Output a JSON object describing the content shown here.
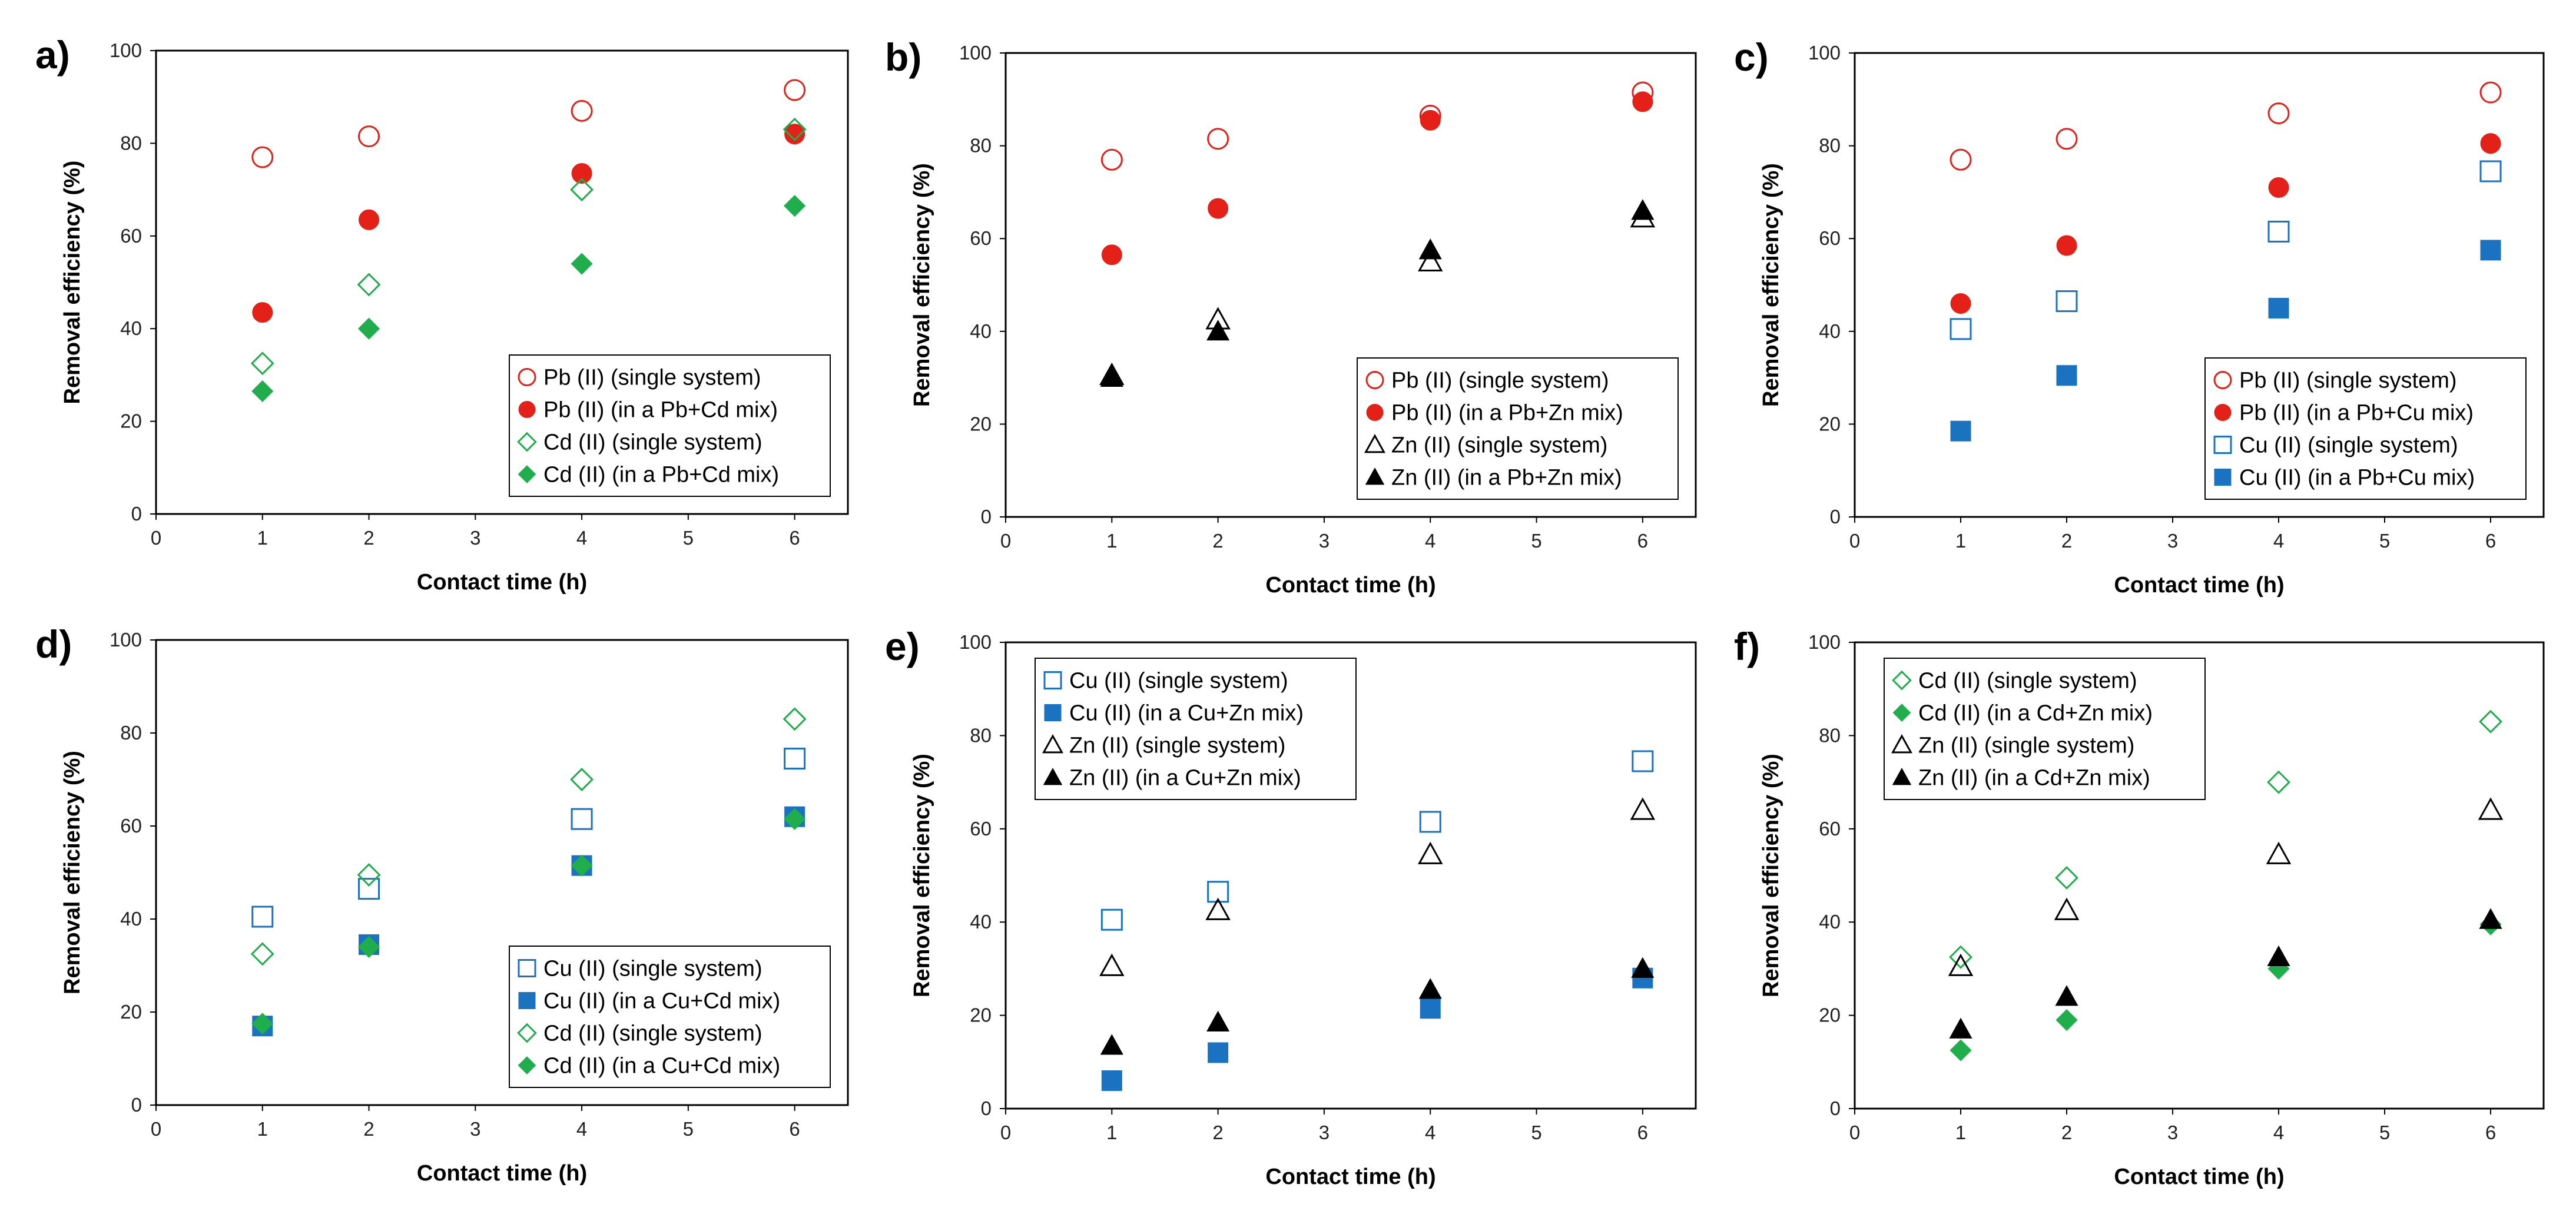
{
  "figure": {
    "colors": {
      "pb": "#e32119",
      "cd": "#20ad4b",
      "cu": "#1a72c1",
      "zn": "#000000"
    }
  },
  "chart_data": [
    {
      "type": "scatter",
      "panel_label": "a)",
      "xlabel": "Contact time (h)",
      "ylabel": "Removal efficiency (%)",
      "xlim": [
        0,
        6.5
      ],
      "ylim": [
        0,
        100
      ],
      "xticks": [
        0,
        1,
        2,
        3,
        4,
        5,
        6
      ],
      "yticks": [
        0,
        20,
        40,
        60,
        80,
        100
      ],
      "legend_position": "bottom-right",
      "series": [
        {
          "name": "Pb (II) (single system)",
          "marker": "circle",
          "filled": false,
          "color": "#e32119",
          "x": [
            1,
            2,
            4,
            6
          ],
          "y": [
            77,
            81.5,
            87,
            91.5
          ]
        },
        {
          "name": "Pb (II) (in a Pb+Cd mix)",
          "marker": "circle",
          "filled": true,
          "color": "#e32119",
          "x": [
            1,
            2,
            4,
            6
          ],
          "y": [
            43.5,
            63.5,
            73.5,
            82
          ]
        },
        {
          "name": "Cd (II) (single system)",
          "marker": "diamond",
          "filled": false,
          "color": "#20ad4b",
          "x": [
            1,
            2,
            4,
            6
          ],
          "y": [
            32.5,
            49.5,
            70,
            83
          ]
        },
        {
          "name": "Cd (II) (in a Pb+Cd mix)",
          "marker": "diamond",
          "filled": true,
          "color": "#20ad4b",
          "x": [
            1,
            2,
            4,
            6
          ],
          "y": [
            26.5,
            40,
            54,
            66.5
          ]
        }
      ]
    },
    {
      "type": "scatter",
      "panel_label": "b)",
      "xlabel": "Contact time (h)",
      "ylabel": "Removal efficiency (%)",
      "xlim": [
        0,
        6.5
      ],
      "ylim": [
        0,
        100
      ],
      "xticks": [
        0,
        1,
        2,
        3,
        4,
        5,
        6
      ],
      "yticks": [
        0,
        20,
        40,
        60,
        80,
        100
      ],
      "legend_position": "bottom-right",
      "series": [
        {
          "name": "Pb (II) (single system)",
          "marker": "circle",
          "filled": false,
          "color": "#e32119",
          "x": [
            1,
            2,
            4,
            6
          ],
          "y": [
            77,
            81.5,
            86.5,
            91.5
          ]
        },
        {
          "name": "Pb (II) (in a Pb+Zn mix)",
          "marker": "circle",
          "filled": true,
          "color": "#e32119",
          "x": [
            1,
            2,
            4,
            6
          ],
          "y": [
            56.5,
            66.5,
            85.5,
            89.5
          ]
        },
        {
          "name": "Zn (II) (single system)",
          "marker": "triangle",
          "filled": false,
          "color": "#000000",
          "x": [
            1,
            2,
            4,
            6
          ],
          "y": [
            30.5,
            42.5,
            55,
            64.5
          ]
        },
        {
          "name": "Zn (II) (in a Pb+Zn mix)",
          "marker": "triangle",
          "filled": true,
          "color": "#000000",
          "x": [
            1,
            2,
            4,
            6
          ],
          "y": [
            30,
            40,
            57.5,
            66
          ]
        }
      ]
    },
    {
      "type": "scatter",
      "panel_label": "c)",
      "xlabel": "Contact time (h)",
      "ylabel": "Removal efficiency (%)",
      "xlim": [
        0,
        6.5
      ],
      "ylim": [
        0,
        100
      ],
      "xticks": [
        0,
        1,
        2,
        3,
        4,
        5,
        6
      ],
      "yticks": [
        0,
        20,
        40,
        60,
        80,
        100
      ],
      "legend_position": "bottom-right",
      "series": [
        {
          "name": "Pb (II) (single system)",
          "marker": "circle",
          "filled": false,
          "color": "#e32119",
          "x": [
            1,
            2,
            4,
            6
          ],
          "y": [
            77,
            81.5,
            87,
            91.5
          ]
        },
        {
          "name": "Pb (II) (in a Pb+Cu mix)",
          "marker": "circle",
          "filled": true,
          "color": "#e32119",
          "x": [
            1,
            2,
            4,
            6
          ],
          "y": [
            46,
            58.5,
            71,
            80.5
          ]
        },
        {
          "name": "Cu (II) (single system)",
          "marker": "square",
          "filled": false,
          "color": "#1a72c1",
          "x": [
            1,
            2,
            4,
            6
          ],
          "y": [
            40.5,
            46.5,
            61.5,
            74.5
          ]
        },
        {
          "name": "Cu (II) (in a Pb+Cu mix)",
          "marker": "square",
          "filled": true,
          "color": "#1a72c1",
          "x": [
            1,
            2,
            4,
            6
          ],
          "y": [
            18.5,
            30.5,
            45,
            57.5
          ]
        }
      ]
    },
    {
      "type": "scatter",
      "panel_label": "d)",
      "xlabel": "Contact time (h)",
      "ylabel": "Removal efficiency (%)",
      "xlim": [
        0,
        6.5
      ],
      "ylim": [
        0,
        100
      ],
      "xticks": [
        0,
        1,
        2,
        3,
        4,
        5,
        6
      ],
      "yticks": [
        0,
        20,
        40,
        60,
        80,
        100
      ],
      "legend_position": "bottom-right",
      "series": [
        {
          "name": "Cu (II) (single system)",
          "marker": "square",
          "filled": false,
          "color": "#1a72c1",
          "x": [
            1,
            2,
            4,
            6
          ],
          "y": [
            40.5,
            46.5,
            61.5,
            74.5
          ]
        },
        {
          "name": "Cu (II) (in a Cu+Cd mix)",
          "marker": "square",
          "filled": true,
          "color": "#1a72c1",
          "x": [
            1,
            2,
            4,
            6
          ],
          "y": [
            17,
            34.5,
            51.5,
            62
          ]
        },
        {
          "name": "Cd (II) (single system)",
          "marker": "diamond",
          "filled": false,
          "color": "#20ad4b",
          "x": [
            1,
            2,
            4,
            6
          ],
          "y": [
            32.5,
            49.5,
            70,
            83
          ]
        },
        {
          "name": "Cd (II) (in a Cu+Cd mix)",
          "marker": "diamond",
          "filled": true,
          "color": "#20ad4b",
          "x": [
            1,
            2,
            4,
            6
          ],
          "y": [
            17.5,
            34,
            51.5,
            61.5
          ]
        }
      ]
    },
    {
      "type": "scatter",
      "panel_label": "e)",
      "xlabel": "Contact time (h)",
      "ylabel": "Removal efficiency (%)",
      "xlim": [
        0,
        6.5
      ],
      "ylim": [
        0,
        100
      ],
      "xticks": [
        0,
        1,
        2,
        3,
        4,
        5,
        6
      ],
      "yticks": [
        0,
        20,
        40,
        60,
        80,
        100
      ],
      "legend_position": "top-left",
      "series": [
        {
          "name": "Cu (II) (single system)",
          "marker": "square",
          "filled": false,
          "color": "#1a72c1",
          "x": [
            1,
            2,
            4,
            6
          ],
          "y": [
            40.5,
            46.5,
            61.5,
            74.5
          ]
        },
        {
          "name": "Cu (II) (in a Cu+Zn mix)",
          "marker": "square",
          "filled": true,
          "color": "#1a72c1",
          "x": [
            1,
            2,
            4,
            6
          ],
          "y": [
            6,
            12,
            21.5,
            28
          ]
        },
        {
          "name": "Zn (II) (single system)",
          "marker": "triangle",
          "filled": false,
          "color": "#000000",
          "x": [
            1,
            2,
            4,
            6
          ],
          "y": [
            30.5,
            42.5,
            54.5,
            64
          ]
        },
        {
          "name": "Zn (II) (in a Cu+Zn mix)",
          "marker": "triangle",
          "filled": true,
          "color": "#000000",
          "x": [
            1,
            2,
            4,
            6
          ],
          "y": [
            13.5,
            18.5,
            25.5,
            30
          ]
        }
      ]
    },
    {
      "type": "scatter",
      "panel_label": "f)",
      "xlabel": "Contact time (h)",
      "ylabel": "Removal efficiency (%)",
      "xlim": [
        0,
        6.5
      ],
      "ylim": [
        0,
        100
      ],
      "xticks": [
        0,
        1,
        2,
        3,
        4,
        5,
        6
      ],
      "yticks": [
        0,
        20,
        40,
        60,
        80,
        100
      ],
      "legend_position": "top-left",
      "series": [
        {
          "name": "Cd (II) (single system)",
          "marker": "diamond",
          "filled": false,
          "color": "#20ad4b",
          "x": [
            1,
            2,
            4,
            6
          ],
          "y": [
            32.5,
            49.5,
            70,
            83
          ]
        },
        {
          "name": "Cd (II) (in a Cd+Zn mix)",
          "marker": "diamond",
          "filled": true,
          "color": "#20ad4b",
          "x": [
            1,
            2,
            4,
            6
          ],
          "y": [
            12.5,
            19,
            30,
            39.5
          ]
        },
        {
          "name": "Zn (II) (single system)",
          "marker": "triangle",
          "filled": false,
          "color": "#000000",
          "x": [
            1,
            2,
            4,
            6
          ],
          "y": [
            30.5,
            42.5,
            54.5,
            64
          ]
        },
        {
          "name": "Zn (II) (in a Cd+Zn mix)",
          "marker": "triangle",
          "filled": true,
          "color": "#000000",
          "x": [
            1,
            2,
            4,
            6
          ],
          "y": [
            17,
            24,
            32.5,
            40.5
          ]
        }
      ]
    }
  ]
}
